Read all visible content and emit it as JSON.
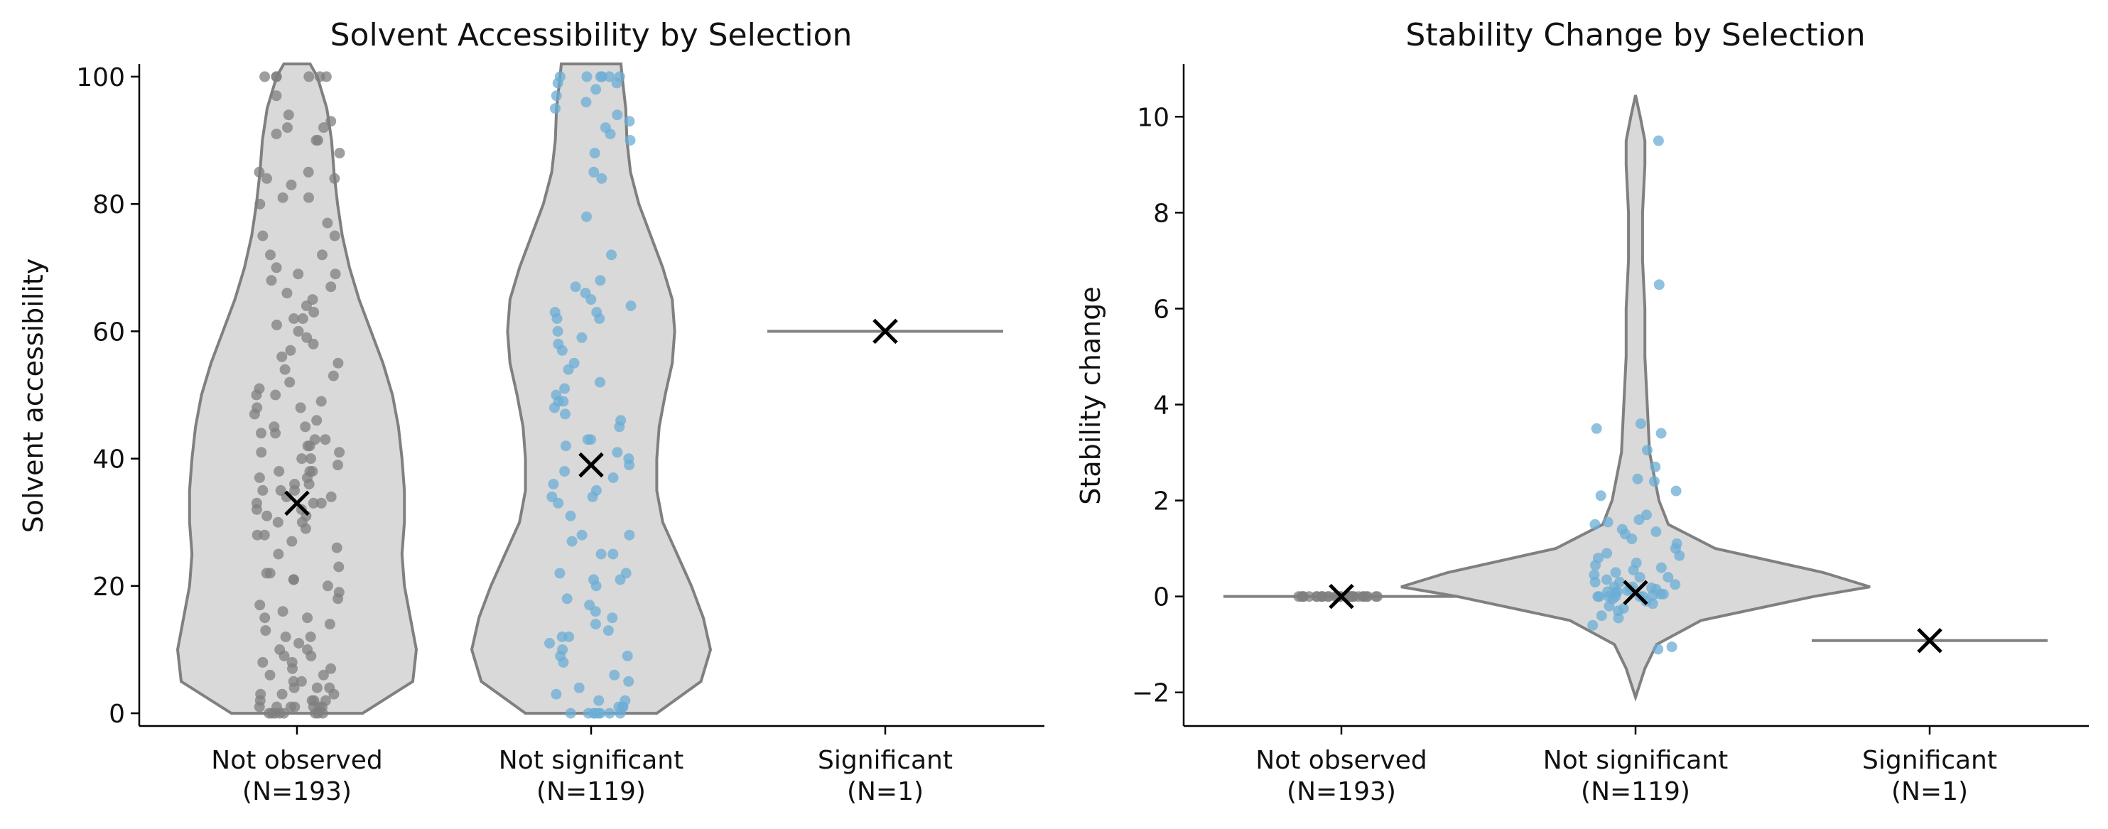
{
  "chart_data": [
    {
      "type": "violin",
      "title": "Solvent Accessibility by Selection",
      "xlabel": "",
      "ylabel": "Solvent accessibility",
      "ylim": [
        -2,
        102
      ],
      "yticks": [
        0,
        20,
        40,
        60,
        80,
        100
      ],
      "categories": [
        "Not observed\n(N=193)",
        "Not significant\n(N=119)",
        "Significant\n(N=1)"
      ],
      "category_labels": [
        {
          "name": "Not observed",
          "n": "(N=193)"
        },
        {
          "name": "Not significant",
          "n": "(N=119)"
        },
        {
          "name": "Significant",
          "n": "(N=1)"
        }
      ],
      "grid": false,
      "colors": {
        "violin_fill": "#d9d9d9",
        "violin_edge": "#808080",
        "not_observed_points": "#7f7f7f",
        "not_significant_points": "#6baed6",
        "mean_marker": "#000000"
      },
      "series": [
        {
          "points": [
            0,
            0,
            0,
            0,
            0,
            0,
            0,
            0,
            1,
            1,
            1,
            1,
            1,
            1,
            1,
            2,
            2,
            2,
            2,
            3,
            3,
            3,
            4,
            4,
            4,
            5,
            5,
            6,
            6,
            7,
            7,
            8,
            8,
            9,
            9,
            10,
            10,
            11,
            12,
            12,
            13,
            14,
            15,
            15,
            16,
            17,
            18,
            19,
            20,
            21,
            21,
            22,
            22,
            23,
            25,
            26,
            27,
            28,
            28,
            29,
            30,
            30,
            31,
            31,
            32,
            32,
            33,
            33,
            33,
            34,
            34,
            35,
            35,
            35,
            36,
            36,
            37,
            37,
            38,
            38,
            38,
            39,
            40,
            40,
            41,
            41,
            42,
            42,
            43,
            43,
            44,
            44,
            45,
            45,
            46,
            47,
            48,
            48,
            49,
            50,
            50,
            51,
            52,
            53,
            54,
            55,
            56,
            57,
            58,
            59,
            60,
            61,
            62,
            62,
            63,
            64,
            65,
            66,
            67,
            68,
            69,
            69,
            70,
            72,
            72,
            75,
            75,
            77,
            80,
            81,
            81,
            83,
            84,
            84,
            85,
            85,
            88,
            90,
            90,
            91,
            92,
            92,
            93,
            94,
            97,
            100,
            100,
            100,
            100,
            100,
            100
          ],
          "mean": 33,
          "kde": [
            [
              0,
              0.55
            ],
            [
              5,
              0.97
            ],
            [
              10,
              1.0
            ],
            [
              15,
              0.95
            ],
            [
              20,
              0.9
            ],
            [
              25,
              0.88
            ],
            [
              30,
              0.9
            ],
            [
              35,
              0.9
            ],
            [
              40,
              0.88
            ],
            [
              45,
              0.85
            ],
            [
              50,
              0.8
            ],
            [
              55,
              0.72
            ],
            [
              60,
              0.62
            ],
            [
              65,
              0.52
            ],
            [
              70,
              0.44
            ],
            [
              75,
              0.38
            ],
            [
              80,
              0.34
            ],
            [
              85,
              0.31
            ],
            [
              90,
              0.29
            ],
            [
              95,
              0.25
            ],
            [
              100,
              0.17
            ],
            [
              102,
              0.11
            ]
          ]
        },
        {
          "points": [
            0,
            0,
            0,
            0,
            0,
            0,
            0,
            0,
            1,
            1,
            1,
            2,
            2,
            3,
            4,
            5,
            6,
            8,
            9,
            9,
            10,
            11,
            12,
            12,
            13,
            14,
            15,
            16,
            17,
            18,
            20,
            21,
            21,
            22,
            22,
            25,
            25,
            27,
            28,
            28,
            31,
            33,
            34,
            34,
            35,
            36,
            37,
            38,
            39,
            40,
            41,
            42,
            43,
            43,
            45,
            46,
            47,
            48,
            49,
            49,
            50,
            51,
            52,
            54,
            55,
            57,
            58,
            59,
            60,
            62,
            62,
            63,
            63,
            64,
            65,
            66,
            67,
            68,
            72,
            78,
            84,
            85,
            88,
            90,
            91,
            92,
            93,
            94,
            95,
            96,
            97,
            98,
            99,
            99,
            100,
            100,
            100,
            100,
            100,
            100
          ],
          "mean": 39,
          "kde": [
            [
              0,
              0.55
            ],
            [
              5,
              0.92
            ],
            [
              10,
              1.0
            ],
            [
              15,
              0.94
            ],
            [
              20,
              0.84
            ],
            [
              25,
              0.72
            ],
            [
              30,
              0.6
            ],
            [
              35,
              0.55
            ],
            [
              40,
              0.55
            ],
            [
              45,
              0.57
            ],
            [
              50,
              0.62
            ],
            [
              55,
              0.68
            ],
            [
              60,
              0.7
            ],
            [
              65,
              0.68
            ],
            [
              70,
              0.6
            ],
            [
              75,
              0.5
            ],
            [
              80,
              0.4
            ],
            [
              85,
              0.33
            ],
            [
              90,
              0.3
            ],
            [
              95,
              0.29
            ],
            [
              100,
              0.26
            ],
            [
              102,
              0.25
            ]
          ]
        },
        {
          "points": [
            60
          ],
          "mean": 60,
          "kde": []
        }
      ]
    },
    {
      "type": "violin",
      "title": "Stability Change by Selection",
      "xlabel": "",
      "ylabel": "Stability change",
      "ylim": [
        -2.7,
        11.1
      ],
      "yticks": [
        -2,
        0,
        2,
        4,
        6,
        8,
        10
      ],
      "categories": [
        "Not observed\n(N=193)",
        "Not significant\n(N=119)",
        "Significant\n(N=1)"
      ],
      "category_labels": [
        {
          "name": "Not observed",
          "n": "(N=193)"
        },
        {
          "name": "Not significant",
          "n": "(N=119)"
        },
        {
          "name": "Significant",
          "n": "(N=1)"
        }
      ],
      "grid": false,
      "colors": {
        "violin_fill": "#d9d9d9",
        "violin_edge": "#808080",
        "not_observed_points": "#7f7f7f",
        "not_significant_points": "#6baed6",
        "mean_marker": "#000000"
      },
      "series": [
        {
          "points": [
            0,
            0,
            0,
            0,
            0,
            0,
            0,
            0,
            0,
            0,
            0,
            0,
            0,
            0,
            0,
            0,
            0,
            0,
            0,
            0,
            0,
            0,
            0,
            0,
            0,
            0,
            0,
            0,
            0,
            0
          ],
          "mean": 0,
          "kde": []
        },
        {
          "points": [
            -1.1,
            -1.05,
            -0.6,
            -0.45,
            -0.4,
            -0.3,
            -0.25,
            -0.2,
            -0.15,
            -0.1,
            -0.05,
            0,
            0,
            0,
            0,
            0,
            0,
            0.02,
            0.05,
            0.05,
            0.08,
            0.1,
            0.1,
            0.12,
            0.15,
            0.15,
            0.18,
            0.2,
            0.2,
            0.25,
            0.3,
            0.3,
            0.35,
            0.4,
            0.4,
            0.45,
            0.5,
            0.55,
            0.6,
            0.65,
            0.7,
            0.8,
            0.85,
            0.9,
            1.0,
            1.1,
            1.2,
            1.3,
            1.35,
            1.4,
            1.5,
            1.55,
            1.6,
            1.7,
            2.1,
            2.2,
            2.4,
            2.45,
            2.7,
            3.05,
            3.4,
            3.5,
            3.6,
            6.5,
            9.5
          ],
          "mean": 0.08,
          "kde": [
            [
              -2.1,
              0.0
            ],
            [
              -1.5,
              0.04
            ],
            [
              -1.0,
              0.09
            ],
            [
              -0.5,
              0.28
            ],
            [
              0.0,
              0.76
            ],
            [
              0.2,
              1.0
            ],
            [
              0.5,
              0.8
            ],
            [
              1.0,
              0.34
            ],
            [
              1.5,
              0.14
            ],
            [
              2.0,
              0.1
            ],
            [
              3.0,
              0.06
            ],
            [
              4.0,
              0.05
            ],
            [
              5.0,
              0.04
            ],
            [
              6.0,
              0.04
            ],
            [
              7.0,
              0.03
            ],
            [
              8.0,
              0.03
            ],
            [
              9.0,
              0.04
            ],
            [
              9.5,
              0.04
            ],
            [
              10.0,
              0.02
            ],
            [
              10.45,
              0.0
            ]
          ]
        },
        {
          "points": [
            -0.92
          ],
          "mean": -0.92,
          "kde": []
        }
      ]
    }
  ]
}
